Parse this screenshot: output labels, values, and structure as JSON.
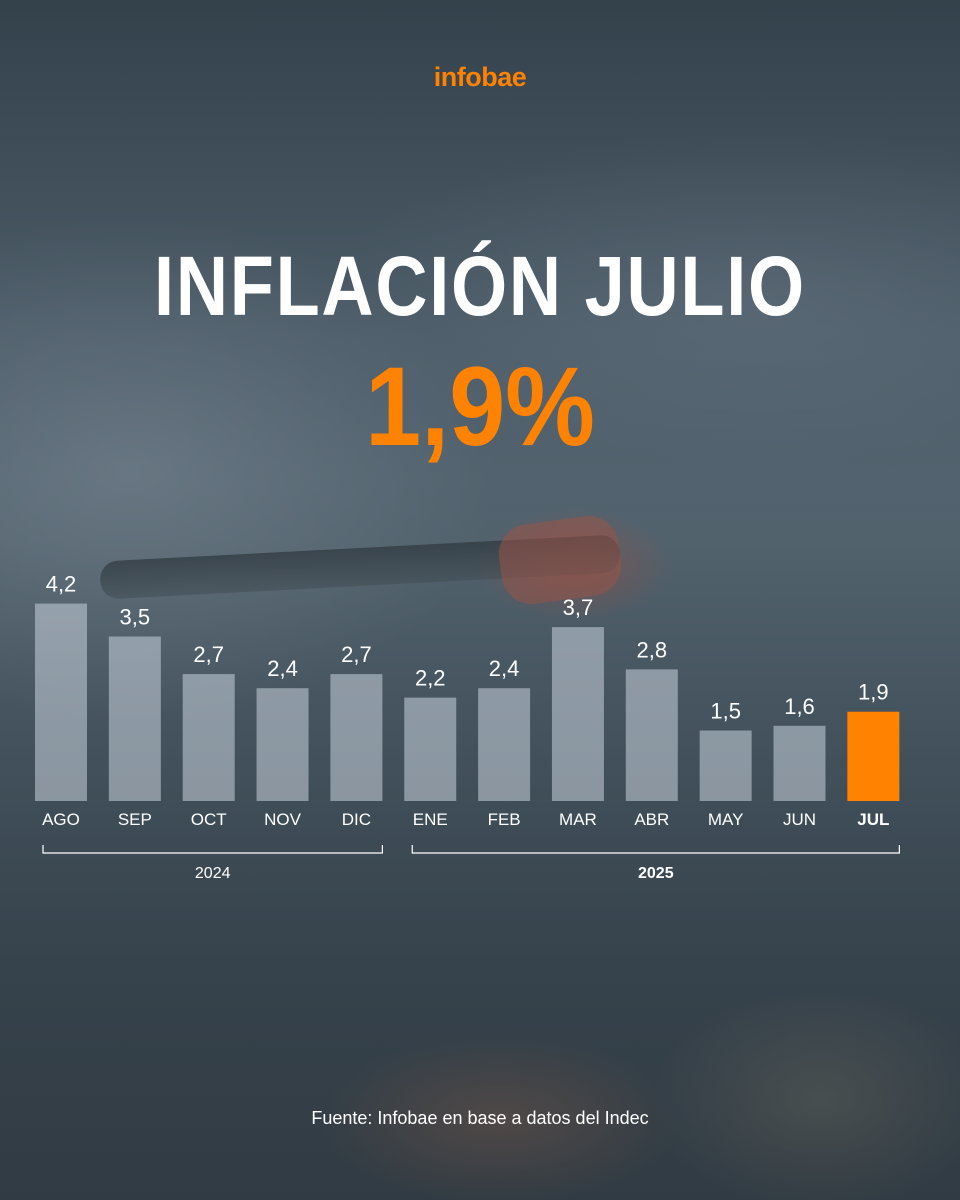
{
  "header": {
    "logo_text": "infobae",
    "title": "INFLACIÓN JULIO",
    "highlight_value": "1,9%"
  },
  "colors": {
    "accent": "#ff8200",
    "bar": "#c9d2dc",
    "text": "#ffffff"
  },
  "chart_data": {
    "type": "bar",
    "title": "INFLACIÓN JULIO",
    "categories": [
      "AGO",
      "SEP",
      "OCT",
      "NOV",
      "DIC",
      "ENE",
      "FEB",
      "MAR",
      "ABR",
      "MAY",
      "JUN",
      "JUL"
    ],
    "values": [
      4.2,
      3.5,
      2.7,
      2.4,
      2.7,
      2.2,
      2.4,
      3.7,
      2.8,
      1.5,
      1.6,
      1.9
    ],
    "value_labels": [
      "4,2",
      "3,5",
      "2,7",
      "2,4",
      "2,7",
      "2,2",
      "2,4",
      "3,7",
      "2,8",
      "1,5",
      "1,6",
      "1,9"
    ],
    "highlighted_category": "JUL",
    "year_groups": [
      {
        "label": "2024",
        "from": "AGO",
        "to": "DIC"
      },
      {
        "label": "2025",
        "from": "ENE",
        "to": "JUL"
      }
    ],
    "xlabel": "",
    "ylabel": "",
    "grid": false,
    "legend": "none"
  },
  "footer": {
    "source": "Fuente: Infobae en base a datos del Indec"
  }
}
